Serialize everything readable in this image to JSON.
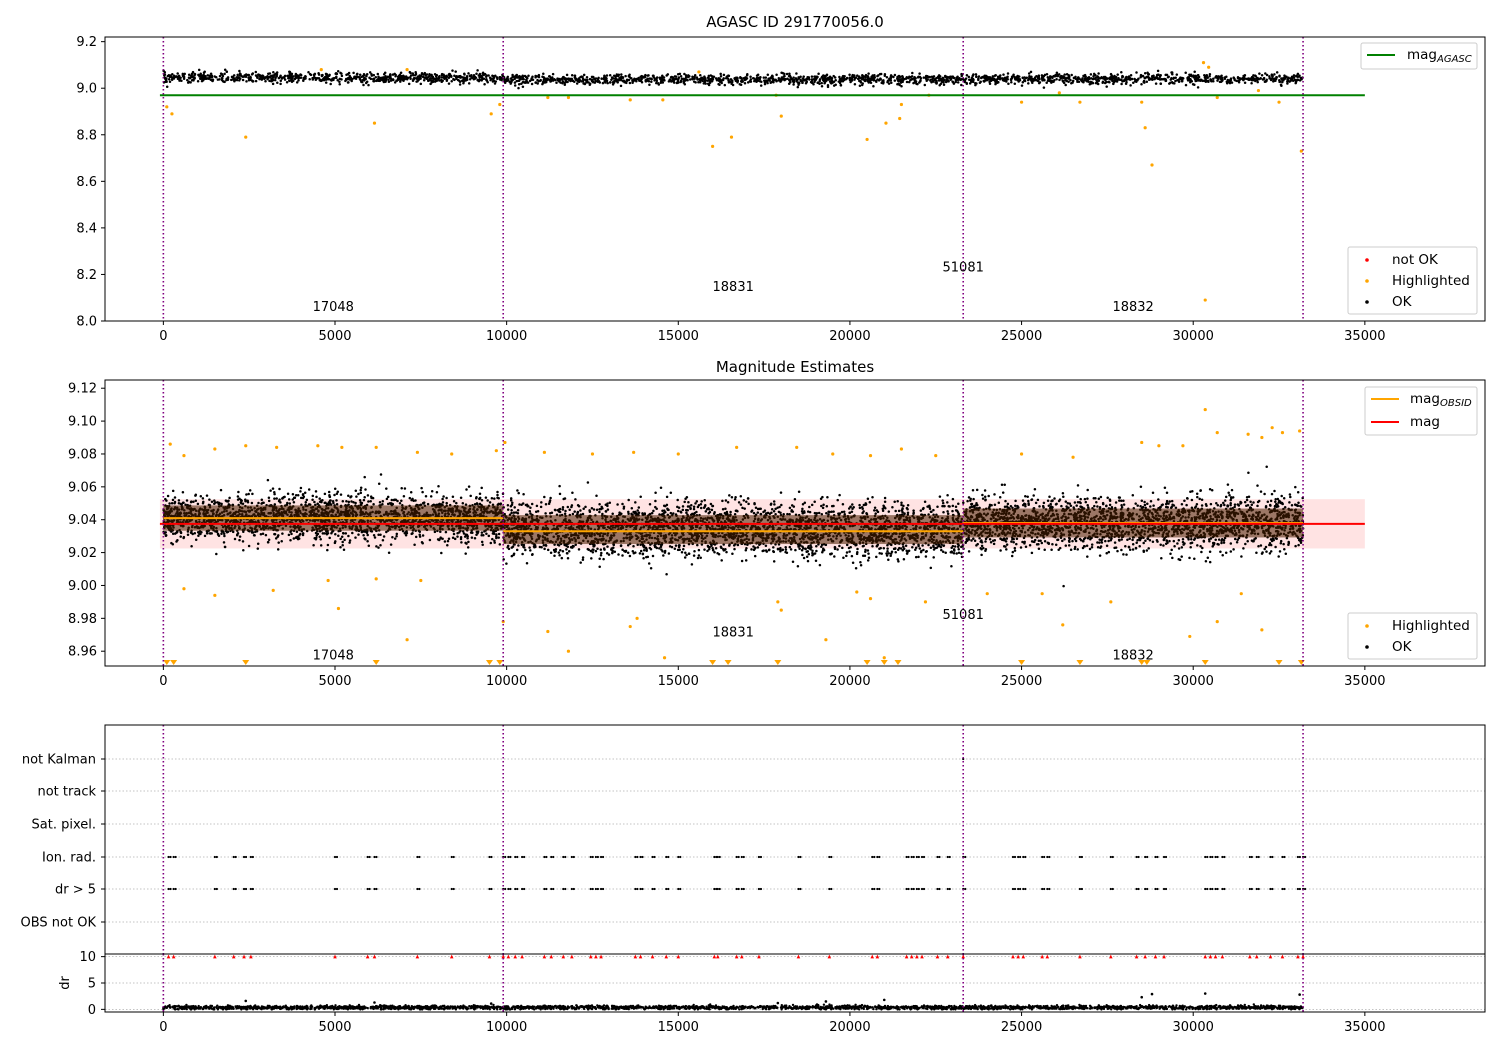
{
  "figure": {
    "background": "#ffffff"
  },
  "colors": {
    "ok": "#000000",
    "highlighted": "#ffa500",
    "not_ok": "#ff0000",
    "agasc_line": "#008000",
    "obs_line": "#ffa500",
    "mag_line": "#ff0000",
    "mag_band": "#ffc0c0",
    "obs_sep": "#800080",
    "frame": "#000000",
    "grid": "#b0b0b0"
  },
  "chart_data": [
    {
      "id": "agasc",
      "type": "scatter",
      "title": "AGASC ID 291770056.0",
      "xlim": [
        -1700,
        38500
      ],
      "ylim": [
        8.0,
        9.22
      ],
      "x_ticks": [
        0,
        5000,
        10000,
        15000,
        20000,
        25000,
        30000,
        35000
      ],
      "x_tick_labels": [
        "0",
        "5000",
        "10000",
        "15000",
        "20000",
        "25000",
        "30000",
        "35000"
      ],
      "y_ticks": [
        8.0,
        8.2,
        8.4,
        8.6,
        8.8,
        9.0,
        9.2
      ],
      "y_tick_labels": [
        "8.0",
        "8.2",
        "8.4",
        "8.6",
        "8.8",
        "9.0",
        "9.2"
      ],
      "agasc_mag": 8.97,
      "agasc_line_x": [
        -100,
        35000
      ],
      "obs_boundaries": [
        0,
        9900,
        23300,
        33200
      ],
      "ok_segments": [
        {
          "x": [
            0,
            9900
          ],
          "center": 9.045,
          "spread": 0.022
        },
        {
          "x": [
            9900,
            23300
          ],
          "center": 9.037,
          "spread": 0.022
        },
        {
          "x": [
            23300,
            33200
          ],
          "center": 9.04,
          "spread": 0.022
        }
      ],
      "highlighted_points": [
        [
          100,
          8.92
        ],
        [
          250,
          8.89
        ],
        [
          2400,
          8.79
        ],
        [
          6150,
          8.85
        ],
        [
          9550,
          8.89
        ],
        [
          9800,
          8.93
        ],
        [
          11200,
          8.96
        ],
        [
          11800,
          8.96
        ],
        [
          13600,
          8.95
        ],
        [
          14550,
          8.95
        ],
        [
          16000,
          8.75
        ],
        [
          16550,
          8.79
        ],
        [
          17850,
          8.97
        ],
        [
          18000,
          8.88
        ],
        [
          20500,
          8.78
        ],
        [
          21050,
          8.85
        ],
        [
          21450,
          8.87
        ],
        [
          21500,
          8.93
        ],
        [
          22300,
          8.97
        ],
        [
          25000,
          8.94
        ],
        [
          26100,
          8.98
        ],
        [
          26700,
          8.94
        ],
        [
          28500,
          8.94
        ],
        [
          28600,
          8.83
        ],
        [
          28800,
          8.67
        ],
        [
          30350,
          8.09
        ],
        [
          30700,
          8.96
        ],
        [
          31900,
          8.99
        ],
        [
          32500,
          8.94
        ],
        [
          33150,
          8.73
        ],
        [
          30300,
          9.11
        ],
        [
          30450,
          9.09
        ],
        [
          4600,
          9.08
        ],
        [
          7100,
          9.08
        ],
        [
          15600,
          9.07
        ]
      ],
      "annotations": [
        {
          "text": "17048",
          "x": 4950,
          "y": 8.06
        },
        {
          "text": "18831",
          "x": 16600,
          "y": 8.145
        },
        {
          "text": "51081",
          "x": 23300,
          "y": 8.23
        },
        {
          "text": "18832",
          "x": 28250,
          "y": 8.06
        }
      ],
      "legends": [
        {
          "placement": "upper right",
          "entries": [
            {
              "key": "agasc_line",
              "marker": "line",
              "label": "mag",
              "sub": "AGASC"
            }
          ]
        },
        {
          "placement": "lower right",
          "entries": [
            {
              "key": "not_ok",
              "marker": "dot",
              "label": "not OK"
            },
            {
              "key": "highlighted",
              "marker": "dot",
              "label": "Highlighted"
            },
            {
              "key": "ok",
              "marker": "dot",
              "label": "OK"
            }
          ]
        }
      ]
    },
    {
      "id": "estimates",
      "type": "scatter",
      "title": "Magnitude Estimates",
      "xlim": [
        -1700,
        38500
      ],
      "ylim": [
        8.951,
        9.125
      ],
      "x_ticks": [
        0,
        5000,
        10000,
        15000,
        20000,
        25000,
        30000,
        35000
      ],
      "x_tick_labels": [
        "0",
        "5000",
        "10000",
        "15000",
        "20000",
        "25000",
        "30000",
        "35000"
      ],
      "y_ticks": [
        8.96,
        8.98,
        9.0,
        9.02,
        9.04,
        9.06,
        9.08,
        9.1,
        9.12
      ],
      "y_tick_labels": [
        "8.96",
        "8.98",
        "9.00",
        "9.02",
        "9.04",
        "9.06",
        "9.08",
        "9.10",
        "9.12"
      ],
      "mag": 9.0375,
      "mag_band": [
        9.0225,
        9.0525
      ],
      "mag_line_x": [
        -100,
        35000
      ],
      "obs_mags": [
        {
          "x": [
            0,
            9900
          ],
          "value": 9.041
        },
        {
          "x": [
            9900,
            23300
          ],
          "value": 9.033
        },
        {
          "x": [
            23300,
            33200
          ],
          "value": 9.038
        }
      ],
      "obs_boundaries": [
        0,
        9900,
        23300,
        33200
      ],
      "ok_segments": [
        {
          "x": [
            0,
            9900
          ],
          "center": 9.041,
          "spread": 0.014
        },
        {
          "x": [
            9900,
            23300
          ],
          "center": 9.034,
          "spread": 0.016
        },
        {
          "x": [
            23300,
            33200
          ],
          "center": 9.038,
          "spread": 0.016
        }
      ],
      "highlighted_points": [
        [
          200,
          9.086
        ],
        [
          600,
          9.079
        ],
        [
          1500,
          9.083
        ],
        [
          2400,
          9.085
        ],
        [
          3300,
          9.084
        ],
        [
          4500,
          9.085
        ],
        [
          5200,
          9.084
        ],
        [
          6200,
          9.084
        ],
        [
          7400,
          9.081
        ],
        [
          8400,
          9.08
        ],
        [
          9700,
          9.082
        ],
        [
          9950,
          9.087
        ],
        [
          11100,
          9.081
        ],
        [
          12500,
          9.08
        ],
        [
          13700,
          9.081
        ],
        [
          15000,
          9.08
        ],
        [
          16700,
          9.084
        ],
        [
          18450,
          9.084
        ],
        [
          19500,
          9.08
        ],
        [
          20600,
          9.079
        ],
        [
          21500,
          9.083
        ],
        [
          22500,
          9.079
        ],
        [
          25000,
          9.08
        ],
        [
          26500,
          9.078
        ],
        [
          28500,
          9.087
        ],
        [
          29000,
          9.085
        ],
        [
          29700,
          9.085
        ],
        [
          30350,
          9.107
        ],
        [
          30700,
          9.093
        ],
        [
          31600,
          9.092
        ],
        [
          32000,
          9.09
        ],
        [
          32300,
          9.096
        ],
        [
          32600,
          9.093
        ],
        [
          33100,
          9.094
        ],
        [
          600,
          8.998
        ],
        [
          1500,
          8.994
        ],
        [
          3200,
          8.997
        ],
        [
          4800,
          9.003
        ],
        [
          5100,
          8.986
        ],
        [
          6200,
          9.004
        ],
        [
          7100,
          8.967
        ],
        [
          7500,
          9.003
        ],
        [
          9900,
          8.978
        ],
        [
          11200,
          8.972
        ],
        [
          11800,
          8.96
        ],
        [
          13600,
          8.975
        ],
        [
          13800,
          8.98
        ],
        [
          14600,
          8.956
        ],
        [
          17900,
          8.99
        ],
        [
          18000,
          8.985
        ],
        [
          19300,
          8.967
        ],
        [
          20200,
          8.996
        ],
        [
          20600,
          8.992
        ],
        [
          21000,
          8.956
        ],
        [
          22200,
          8.99
        ],
        [
          24000,
          8.995
        ],
        [
          25600,
          8.995
        ],
        [
          26200,
          8.976
        ],
        [
          27600,
          8.99
        ],
        [
          29900,
          8.969
        ],
        [
          30700,
          8.978
        ],
        [
          31400,
          8.995
        ],
        [
          32000,
          8.973
        ]
      ],
      "clipped_low_x": [
        100,
        300,
        2400,
        6200,
        9500,
        9800,
        16000,
        16450,
        17900,
        20500,
        21000,
        21400,
        25000,
        26700,
        28500,
        28650,
        30350,
        32500,
        33150
      ],
      "annotations": [
        {
          "text": "17048",
          "x": 4950,
          "y": 8.9575
        },
        {
          "text": "18831",
          "x": 16600,
          "y": 8.9715
        },
        {
          "text": "51081",
          "x": 23300,
          "y": 8.982
        },
        {
          "text": "18832",
          "x": 28250,
          "y": 8.9575
        }
      ],
      "legends": [
        {
          "placement": "upper right",
          "entries": [
            {
              "key": "obs_line",
              "marker": "line",
              "label": "mag",
              "sub": "OBSID"
            },
            {
              "key": "mag_line",
              "marker": "line",
              "label": "mag"
            }
          ]
        },
        {
          "placement": "lower right",
          "entries": [
            {
              "key": "highlighted",
              "marker": "dot",
              "label": "Highlighted"
            },
            {
              "key": "ok",
              "marker": "dot",
              "label": "OK"
            }
          ]
        }
      ]
    },
    {
      "id": "flags",
      "type": "scatter",
      "xlim": [
        -1700,
        38500
      ],
      "categories": [
        "OBS not OK",
        "dr > 5",
        "Ion. rad.",
        "Sat. pixel.",
        "not track",
        "not Kalman"
      ],
      "flag_times": [
        150,
        300,
        1500,
        2050,
        2350,
        2550,
        5000,
        5950,
        6150,
        7400,
        8400,
        9500,
        9900,
        10050,
        10250,
        10450,
        11100,
        11300,
        11650,
        11900,
        12450,
        12600,
        12750,
        13750,
        13900,
        14250,
        14650,
        15000,
        16050,
        16150,
        16700,
        16850,
        17350,
        18500,
        19400,
        20650,
        20800,
        21650,
        21800,
        21950,
        22100,
        22550,
        22850,
        23300,
        24750,
        24900,
        25050,
        25600,
        25750,
        26700,
        27600,
        28350,
        28600,
        28900,
        29150,
        30350,
        30500,
        30650,
        30850,
        31650,
        31850,
        32250,
        32600,
        33050,
        33200
      ],
      "kalman_flag_x": [
        23300
      ],
      "obs_boundaries": [
        0,
        9900,
        23300,
        33200
      ]
    },
    {
      "id": "dr",
      "type": "scatter",
      "xlim": [
        -1700,
        38500
      ],
      "ylim": [
        -0.5,
        10.5
      ],
      "ylabel": "dr",
      "y_ticks": [
        0,
        5,
        10
      ],
      "y_tick_labels": [
        "0",
        "5",
        "10"
      ],
      "x_ticks": [
        0,
        5000,
        10000,
        15000,
        20000,
        25000,
        30000,
        35000
      ],
      "x_tick_labels": [
        "0",
        "5000",
        "10000",
        "15000",
        "20000",
        "25000",
        "30000",
        "35000"
      ],
      "baseline": {
        "x": [
          0,
          33200
        ],
        "center": 0.35,
        "spread": 0.4
      },
      "clipped_value": 10,
      "scattered_points": [
        [
          2400,
          1.6
        ],
        [
          6150,
          1.3
        ],
        [
          9550,
          1.1
        ],
        [
          17900,
          1.2
        ],
        [
          19300,
          1.5
        ],
        [
          21000,
          1.8
        ],
        [
          28500,
          2.3
        ],
        [
          28800,
          2.9
        ],
        [
          30350,
          3.0
        ],
        [
          33100,
          2.8
        ]
      ],
      "obs_boundaries": [
        0,
        9900,
        23300,
        33200
      ]
    }
  ]
}
